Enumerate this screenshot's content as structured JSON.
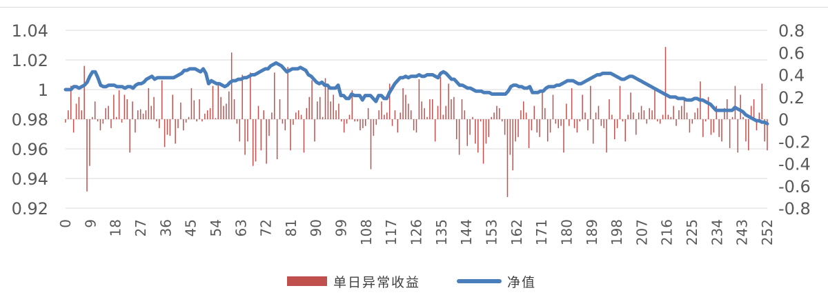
{
  "chart_data": {
    "type": "bar+line",
    "x_start": 0,
    "x_end": 252,
    "x_step": 9,
    "x_tick_labels": [
      "0",
      "9",
      "18",
      "27",
      "36",
      "45",
      "54",
      "63",
      "72",
      "81",
      "90",
      "99",
      "108",
      "117",
      "126",
      "135",
      "144",
      "153",
      "162",
      "171",
      "180",
      "189",
      "198",
      "207",
      "216",
      "225",
      "234",
      "243",
      "252"
    ],
    "left_axis": {
      "min": 0.92,
      "max": 1.04,
      "ticks": [
        "0.92",
        "0.94",
        "0.96",
        "0.98",
        "1",
        "1.02",
        "1.04"
      ],
      "series": "净值"
    },
    "right_axis": {
      "min": -0.8,
      "max": 0.8,
      "ticks": [
        "-0.8",
        "-0.6",
        "-0.4",
        "-0.2",
        "0",
        "0.2",
        "0.4",
        "0.6",
        "0.8"
      ],
      "series": "单日异常收益"
    },
    "grid": true,
    "legend_position": "bottom",
    "series": [
      {
        "name": "单日异常收益",
        "kind": "bar",
        "axis": "right",
        "color": "#c0504d",
        "values": [
          -0.03,
          0.08,
          0.3,
          -0.12,
          0.14,
          0.2,
          0.08,
          0.48,
          -0.65,
          -0.42,
          0.02,
          0.16,
          -0.02,
          -0.1,
          -0.04,
          0.1,
          0.12,
          -0.08,
          0.22,
          0.02,
          0.26,
          -0.03,
          0.22,
          0.18,
          -0.3,
          0.16,
          -0.12,
          0.08,
          0.09,
          0.05,
          0.08,
          0.28,
          0.12,
          0.2,
          -0.02,
          -0.08,
          0.35,
          -0.25,
          -0.14,
          -0.15,
          0.22,
          -0.22,
          -0.08,
          0.15,
          -0.1,
          -0.03,
          0.02,
          0.28,
          0.17,
          -0.02,
          0.18,
          -0.02,
          0.05,
          0.08,
          0.1,
          0.3,
          0.01,
          0.32,
          0.2,
          0.12,
          0.14,
          0.25,
          0.6,
          0.18,
          -0.04,
          -0.2,
          0.4,
          -0.32,
          -0.2,
          0.42,
          -0.42,
          -0.38,
          0.12,
          -0.28,
          0.08,
          -0.4,
          -0.15,
          0.06,
          0.42,
          -0.36,
          0.18,
          -0.04,
          -0.1,
          0.47,
          -0.28,
          -0.05,
          0.06,
          0.08,
          0.04,
          -0.3,
          0.1,
          0.2,
          0.35,
          -0.2,
          0.16,
          0.2,
          0.02,
          0.37,
          0.32,
          0.16,
          0.22,
          0.08,
          0.14,
          -0.02,
          -0.12,
          -0.04,
          0.04,
          0.26,
          -0.02,
          -0.02,
          -0.1,
          -0.08,
          -0.06,
          0.1,
          -0.45,
          -0.15,
          -0.05,
          0.08,
          0.16,
          0.04,
          0.06,
          0.32,
          -0.06,
          0.08,
          -0.12,
          0.06,
          0.28,
          0.22,
          0.14,
          0.08,
          -0.1,
          -0.12,
          0.36,
          0.16,
          0.1,
          0.02,
          0.18,
          0.18,
          -0.2,
          0.12,
          0.38,
          0.04,
          0.12,
          0.32,
          0.18,
          0.2,
          -0.18,
          -0.32,
          0.18,
          0.08,
          -0.24,
          -0.14,
          0.02,
          -0.22,
          -0.3,
          -0.02,
          -0.4,
          -0.22,
          -0.16,
          0.02,
          0.06,
          0.12,
          0.1,
          -0.02,
          -0.14,
          -0.7,
          -0.32,
          -0.46,
          -0.2,
          -0.16,
          0.08,
          0.16,
          0.06,
          -0.26,
          -0.1,
          0.12,
          -0.12,
          -0.16,
          0.26,
          0.1,
          -0.2,
          -0.12,
          0.22,
          -0.04,
          -0.08,
          -0.06,
          -0.3,
          0.14,
          -0.06,
          0.28,
          -0.08,
          -0.12,
          -0.02,
          0.22,
          0.06,
          -0.1,
          0.3,
          -0.22,
          0.06,
          0.12,
          -0.06,
          -0.08,
          -0.3,
          0.18,
          0.04,
          -0.18,
          -0.08,
          0.3,
          -0.02,
          -0.2,
          0.04,
          0.24,
          0.06,
          -0.14,
          0.06,
          0.12,
          0.08,
          -0.04,
          0.1,
          0.08,
          0.28,
          -0.02,
          -0.04,
          0.04,
          0.65,
          0.04,
          0.02,
          0.12,
          -0.06,
          0.08,
          0.12,
          0.18,
          0.06,
          -0.12,
          -0.04,
          0.06,
          0.1,
          0.34,
          -0.16,
          -0.02,
          0.2,
          -0.14,
          -0.12,
          0.12,
          -0.16,
          -0.2,
          0.1,
          0.18,
          -0.26,
          0.02,
          0.3,
          -0.3,
          0.22,
          0.02,
          -0.2,
          -0.28,
          0.12,
          0.18,
          -0.1,
          0.06,
          0.32,
          -0.2,
          -0.28
        ],
        "note_min": -0.7
      },
      {
        "name": "净值",
        "kind": "line",
        "axis": "left",
        "color": "#4a7ebb",
        "values": [
          1,
          1,
          1,
          1.002,
          1.002,
          1.001,
          1.002,
          1.003,
          1.005,
          1.009,
          1.012,
          1.012,
          1.008,
          1.003,
          1.002,
          1.002,
          1.003,
          1.003,
          1.003,
          1.002,
          1.002,
          1.002,
          1.001,
          1.002,
          1.002,
          1.001,
          1.003,
          1.004,
          1.004,
          1.005,
          1.007,
          1.008,
          1.009,
          1.007,
          1.008,
          1.008,
          1.008,
          1.008,
          1.008,
          1.008,
          1.008,
          1.009,
          1.01,
          1.011,
          1.013,
          1.013,
          1.014,
          1.014,
          1.014,
          1.013,
          1.012,
          1.014,
          1.011,
          1.004,
          1.006,
          1.005,
          1.004,
          1.004,
          1.003,
          1.002,
          1.003,
          1.005,
          1.006,
          1.006,
          1.007,
          1.007,
          1.008,
          1.008,
          1.009,
          1.01,
          1.01,
          1.011,
          1.012,
          1.013,
          1.014,
          1.014,
          1.016,
          1.017,
          1.018,
          1.017,
          1.016,
          1.014,
          1.012,
          1.013,
          1.014,
          1.014,
          1.014,
          1.015,
          1.014,
          1.013,
          1.01,
          1.009,
          1.007,
          1.005,
          1.004,
          1.005,
          1.003,
          1.003,
          1.001,
          1.001,
          1.001,
          1.003,
          0.996,
          0.996,
          0.994,
          0.994,
          0.997,
          0.996,
          0.996,
          0.996,
          0.993,
          0.996,
          0.996,
          0.996,
          0.994,
          0.992,
          0.996,
          0.996,
          0.994,
          0.994,
          0.998,
          1.001,
          1.004,
          1.006,
          1.008,
          1.008,
          1.009,
          1.008,
          1.009,
          1.009,
          1.009,
          1.01,
          1.009,
          1.009,
          1.01,
          1.01,
          1.01,
          1.009,
          1.008,
          1.011,
          1.012,
          1.011,
          1.009,
          1.007,
          1.007,
          1.005,
          1.003,
          1.003,
          1.002,
          1.001,
          1.001,
          1.0,
          0.999,
          0.999,
          0.999,
          0.998,
          0.998,
          0.998,
          0.997,
          0.997,
          0.997,
          0.997,
          0.997,
          0.997,
          0.999,
          1.002,
          1.003,
          1.003,
          1.002,
          1.002,
          1.001,
          1.001,
          1.002,
          0.998,
          0.998,
          0.998,
          0.999,
          0.999,
          1.001,
          1.002,
          1.002,
          1.002,
          1.003,
          1.003,
          1.004,
          1.005,
          1.006,
          1.006,
          1.006,
          1.005,
          1.004,
          1.004,
          1.005,
          1.006,
          1.007,
          1.008,
          1.009,
          1.01,
          1.01,
          1.011,
          1.011,
          1.011,
          1.011,
          1.01,
          1.009,
          1.008,
          1.007,
          1.007,
          1.008,
          1.009,
          1.009,
          1.008,
          1.007,
          1.006,
          1.005,
          1.004,
          1.003,
          1.002,
          1.001,
          1.0,
          0.999,
          0.998,
          0.997,
          0.996,
          0.995,
          0.995,
          0.995,
          0.994,
          0.994,
          0.994,
          0.993,
          0.993,
          0.993,
          0.994,
          0.994,
          0.993,
          0.993,
          0.992,
          0.991,
          0.99,
          0.988,
          0.986,
          0.986,
          0.986,
          0.986,
          0.986,
          0.986,
          0.986,
          0.988,
          0.987,
          0.986,
          0.985,
          0.983,
          0.982,
          0.981,
          0.98,
          0.979,
          0.979,
          0.978,
          0.978,
          0.977
        ],
        "line_width": 5
      }
    ],
    "legend": [
      {
        "label": "单日异常收益",
        "color": "#c0504d"
      },
      {
        "label": "净值",
        "color": "#4a7ebb"
      }
    ]
  }
}
